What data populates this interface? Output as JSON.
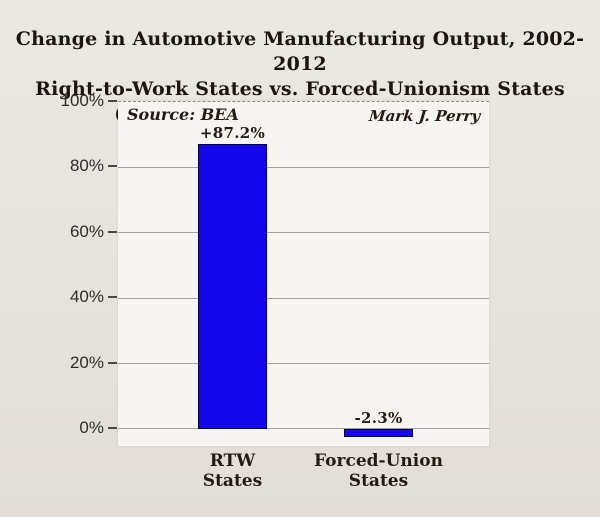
{
  "chart_data": {
    "type": "bar",
    "title": "Change in Automotive Manufacturing Output, 2002-2012",
    "subtitle": "Right-to-Work States vs. Forced-Unionism States",
    "subtitle2": "(Excluding Michigan and Indiana)",
    "source_note": "Source: BEA",
    "watermark": "Mark J. Perry",
    "categories": [
      "RTW States",
      "Forced-Union States"
    ],
    "values": [
      87.2,
      -2.3
    ],
    "bars": [
      {
        "category_lines": [
          "RTW",
          "States"
        ],
        "value": 87.2,
        "label": "+87.2%"
      },
      {
        "category_lines": [
          "Forced-Union",
          "States"
        ],
        "value": -2.3,
        "label": "-2.3%"
      }
    ],
    "yticks": [
      {
        "label": "100%",
        "value": 100
      },
      {
        "label": "80%",
        "value": 80
      },
      {
        "label": "60%",
        "value": 60
      },
      {
        "label": "40%",
        "value": 40
      },
      {
        "label": "20%",
        "value": 20
      },
      {
        "label": "0%",
        "value": 0
      }
    ],
    "ylim": [
      -5.2,
      100
    ],
    "grid": true,
    "legend_position": "none",
    "bar_color": "#1507e9",
    "bar_border_color": "#03004e",
    "background_color": "#e6e2dc",
    "plot_background_color": "#f7f5f1",
    "gridline_color": "#a19f98",
    "text_color": "#241a12"
  }
}
